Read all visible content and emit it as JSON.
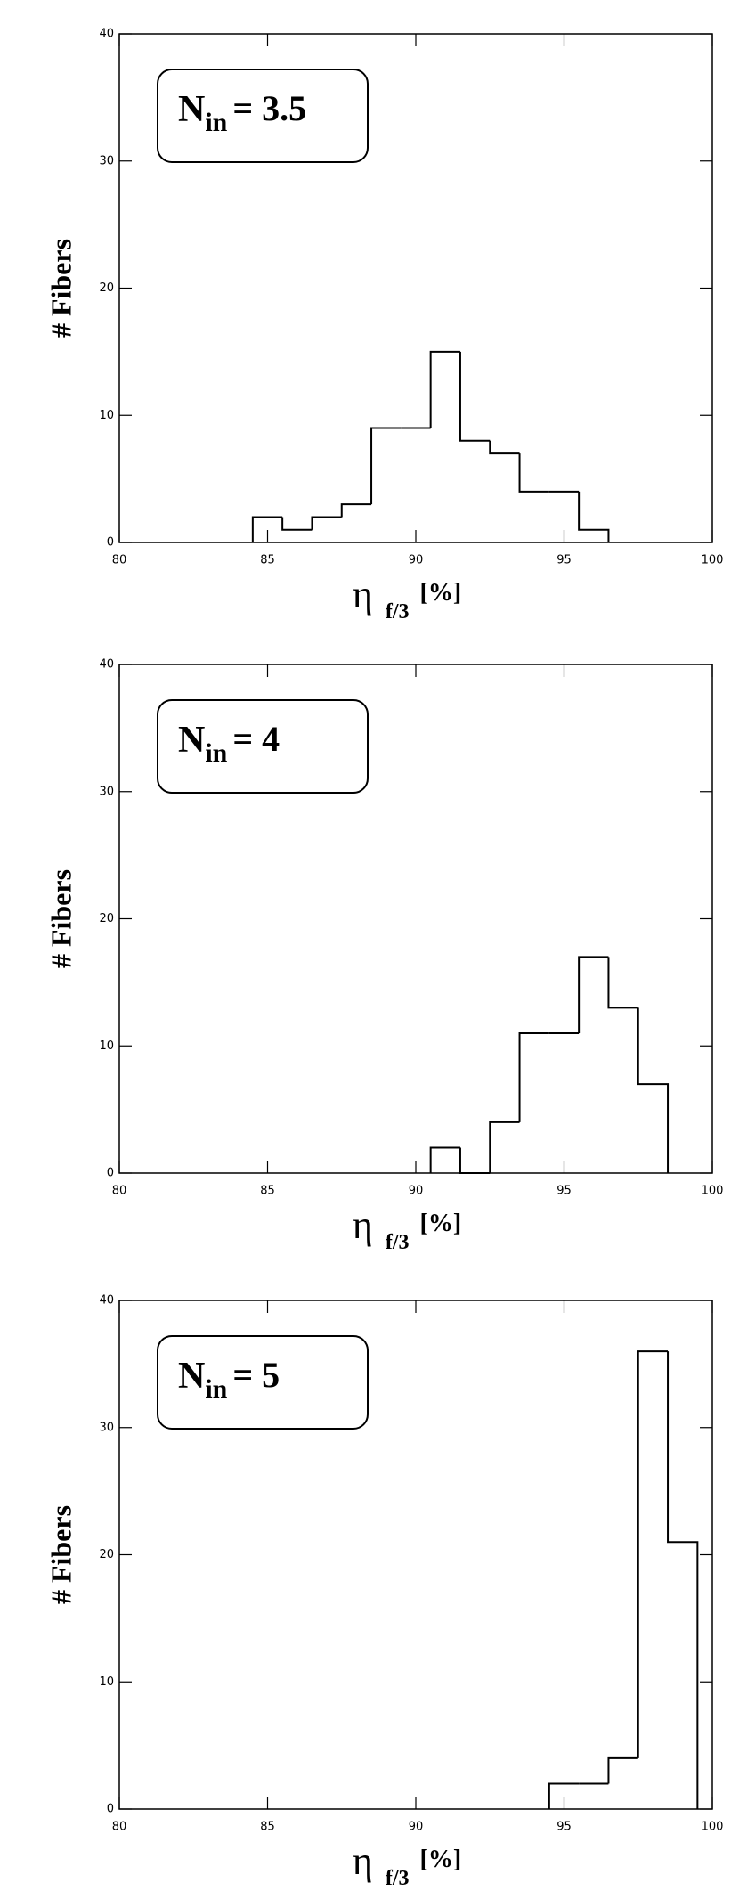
{
  "chart_data": [
    {
      "type": "histogram",
      "ylabel": "# Fibers",
      "xlabel": {
        "symbol": "η",
        "subscript": "f/3",
        "unit": "[%]"
      },
      "annotation": {
        "main": "N",
        "subscript": "in",
        "text": "= 3.5"
      },
      "bins": [
        84.5,
        85.5,
        86.5,
        87.5,
        88.5,
        89.5,
        90.5,
        91.5,
        92.5,
        93.5,
        94.5,
        95.5,
        96.5
      ],
      "values": [
        2,
        1,
        2,
        3,
        9,
        9,
        15,
        8,
        7,
        4,
        4,
        1
      ],
      "color": "#000000",
      "xlim": [
        80,
        100
      ],
      "xticks": [
        80,
        85,
        90,
        95,
        100
      ],
      "ylim": [
        0,
        40
      ],
      "yticks": [
        0,
        10,
        20,
        30,
        40
      ]
    },
    {
      "type": "histogram",
      "ylabel": "# Fibers",
      "xlabel": {
        "symbol": "η",
        "subscript": "f/3",
        "unit": "[%]"
      },
      "annotation": {
        "main": "N",
        "subscript": "in",
        "text": "= 4"
      },
      "bins": [
        90.5,
        91.5,
        92.5,
        93.5,
        94.5,
        95.5,
        96.5,
        97.5,
        98.5
      ],
      "values": [
        2,
        0,
        4,
        11,
        11,
        17,
        13,
        7
      ],
      "color": "#000000",
      "xlim": [
        80,
        100
      ],
      "xticks": [
        80,
        85,
        90,
        95,
        100
      ],
      "ylim": [
        0,
        40
      ],
      "yticks": [
        0,
        10,
        20,
        30,
        40
      ]
    },
    {
      "type": "histogram",
      "ylabel": "# Fibers",
      "xlabel": {
        "symbol": "η",
        "subscript": "f/3",
        "unit": "[%]"
      },
      "annotation": {
        "main": "N",
        "subscript": "in",
        "text": "= 5"
      },
      "bins": [
        94.5,
        95.5,
        96.5,
        97.5,
        98.5,
        99.5
      ],
      "values": [
        2,
        2,
        4,
        36,
        21
      ],
      "color": "#000000",
      "xlim": [
        80,
        100
      ],
      "xticks": [
        80,
        85,
        90,
        95,
        100
      ],
      "ylim": [
        0,
        40
      ],
      "yticks": [
        0,
        10,
        20,
        30,
        40
      ]
    }
  ]
}
